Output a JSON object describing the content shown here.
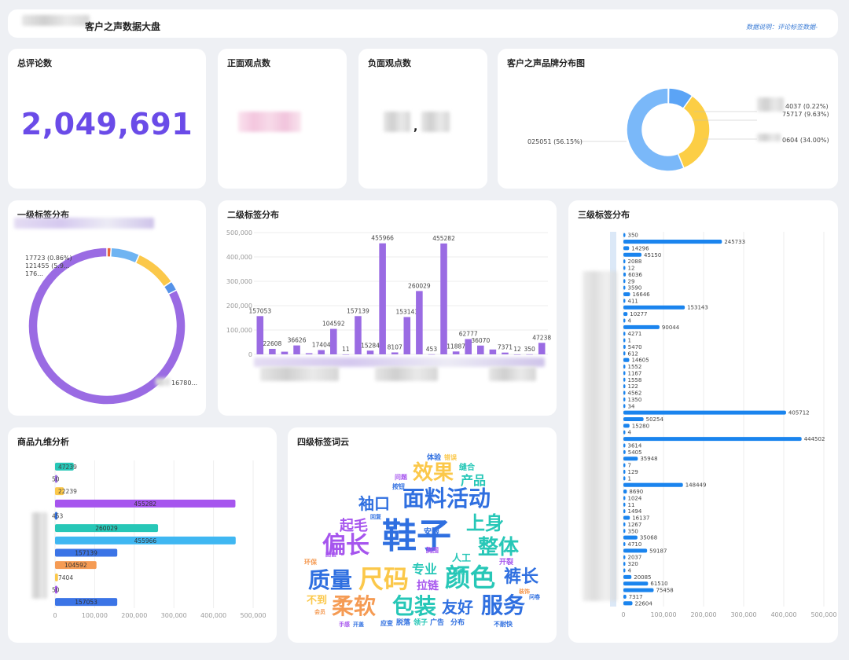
{
  "header": {
    "title": "客户之声数据大盘",
    "note": "数据说明：评论标签数据-"
  },
  "kpis": {
    "total_comments_label": "总评论数",
    "total_comments_value": "2,049,691",
    "positive_label": "正面观点数",
    "negative_label": "负面观点数",
    "negative_separator": ","
  },
  "brand": {
    "title": "客户之声品牌分布图",
    "labels": [
      "4037 (0.22%)",
      "75717 (9.63%)",
      "0604 (34.00%)",
      "025051 (56.15%)"
    ]
  },
  "level1": {
    "title": "一级标签分布",
    "labels": [
      "17723 (0.86%)",
      "121455 (5.9...",
      "176...",
      "16780..."
    ]
  },
  "level2_title": "二级标签分布",
  "level3_title": "三级标签分布",
  "nine_title": "商品九维分析",
  "cloud_title": "四级标签词云",
  "chart_data": [
    {
      "type": "pie",
      "title": "客户之声品牌分布图",
      "shape": "donut",
      "slices": [
        {
          "label": "4037 (0.22%)",
          "percent": 0.22,
          "color": "#4e8ef7"
        },
        {
          "label": "75717 (9.63%)",
          "percent": 9.63,
          "color": "#5ba4f6"
        },
        {
          "label": "0604 (34.00%)",
          "percent": 34.0,
          "color": "#fcce45"
        },
        {
          "label": "025051 (56.15%)",
          "percent": 56.15,
          "color": "#7ab8f9"
        }
      ]
    },
    {
      "type": "pie",
      "title": "一级标签分布",
      "shape": "donut",
      "slices": [
        {
          "label": "17723 (0.86%)",
          "percent": 0.86,
          "color": "#e8643c"
        },
        {
          "label": "121455 (5.9...",
          "percent": 5.93,
          "color": "#6fb4f2"
        },
        {
          "label": "176...",
          "percent": 8.6,
          "color": "#fbc84a"
        },
        {
          "label": "",
          "percent": 2.0,
          "color": "#5592e8"
        },
        {
          "label": "16780...",
          "percent": 82.61,
          "color": "#9a6be3"
        }
      ]
    },
    {
      "type": "bar",
      "title": "二级标签分布",
      "values": [
        157053,
        22608,
        11000,
        36626,
        4500,
        17404,
        104592,
        11,
        157139,
        15284,
        455966,
        8107,
        153143,
        260029,
        453,
        455282,
        11887,
        62777,
        36070,
        20000,
        7371,
        12,
        350,
        47238
      ],
      "labels": [
        "157053",
        "22608",
        "",
        "36626",
        "",
        "17404",
        "104592",
        "11",
        "157139",
        "15284",
        "455966",
        "8107",
        "153143",
        "260029",
        "453",
        "455282",
        "11887",
        "62777",
        "36070",
        "",
        "7371",
        "12",
        "350",
        "47238"
      ],
      "ylim": [
        0,
        500000
      ],
      "yticks": [
        "0",
        "100,000",
        "200,000",
        "300,000",
        "400,000",
        "500,000"
      ],
      "color": "#9a6be3"
    },
    {
      "type": "bar",
      "orientation": "horizontal",
      "title": "三级标签分布",
      "values": [
        350,
        245733,
        14296,
        45150,
        2088,
        12,
        6036,
        29,
        3590,
        16646,
        411,
        153143,
        10277,
        4,
        90044,
        4271,
        1,
        5470,
        612,
        14605,
        1552,
        1167,
        1558,
        122,
        4562,
        1350,
        34,
        405712,
        50254,
        15280,
        4,
        444502,
        3614,
        5405,
        35948,
        7,
        129,
        1,
        148449,
        8690,
        1024,
        11,
        1494,
        16137,
        1267,
        350,
        35068,
        4710,
        59187,
        2037,
        320,
        4,
        20085,
        61510,
        75458,
        7317,
        22604
      ],
      "xlim": [
        0,
        500000
      ],
      "xticks": [
        "0",
        "100,000",
        "200,000",
        "300,000",
        "400,000",
        "500,000"
      ],
      "color": "#1a84ee"
    },
    {
      "type": "bar",
      "orientation": "horizontal",
      "title": "商品九维分析",
      "values": [
        47239,
        50,
        22239,
        455282,
        453,
        260029,
        455966,
        157139,
        104592,
        7404,
        50,
        157053
      ],
      "labels": [
        "47239",
        "50",
        "22239",
        "455282",
        "453",
        "260029",
        "455966",
        "157139",
        "104592",
        "7404",
        "50",
        "157053"
      ],
      "label_positions": [
        "inside",
        "outside",
        "inside",
        "inside",
        "outside",
        "inside",
        "inside",
        "inside",
        "inside",
        "inside",
        "outside",
        "inside"
      ],
      "colors": [
        "#27c7b7",
        "#9a6be3",
        "#fbc84a",
        "#a655ee",
        "#2f6fe0",
        "#27c7b7",
        "#3fb7f2",
        "#3b74e6",
        "#f59b54",
        "#fbc84a",
        "#a655ee",
        "#3b74e6"
      ],
      "xlim": [
        0,
        500000
      ],
      "xticks": [
        "0",
        "100,000",
        "200,000",
        "300,000",
        "400,000",
        "500,000"
      ]
    }
  ],
  "word_cloud": [
    {
      "text": "鞋子",
      "size": 44,
      "color": "#2f6fe0",
      "x": 530,
      "y": 697
    },
    {
      "text": "偏长",
      "size": 30,
      "color": "#a655ee",
      "x": 440,
      "y": 704
    },
    {
      "text": "颜色",
      "size": 32,
      "color": "#27c7b7",
      "x": 598,
      "y": 746
    },
    {
      "text": "尺码",
      "size": 32,
      "color": "#fbc84a",
      "x": 488,
      "y": 748
    },
    {
      "text": "质量",
      "size": 28,
      "color": "#2f6fe0",
      "x": 420,
      "y": 748
    },
    {
      "text": "面料活动",
      "size": 28,
      "color": "#2f6fe0",
      "x": 568,
      "y": 644
    },
    {
      "text": "效果",
      "size": 26,
      "color": "#fbc84a",
      "x": 551,
      "y": 610
    },
    {
      "text": "整体",
      "size": 26,
      "color": "#27c7b7",
      "x": 634,
      "y": 705
    },
    {
      "text": "上身",
      "size": 24,
      "color": "#27c7b7",
      "x": 617,
      "y": 674
    },
    {
      "text": "包装",
      "size": 28,
      "color": "#27c7b7",
      "x": 527,
      "y": 781
    },
    {
      "text": "柔软",
      "size": 28,
      "color": "#f59b54",
      "x": 450,
      "y": 781
    },
    {
      "text": "服务",
      "size": 28,
      "color": "#2f6fe0",
      "x": 640,
      "y": 780
    },
    {
      "text": "裤长",
      "size": 22,
      "color": "#2f6fe0",
      "x": 663,
      "y": 741
    },
    {
      "text": "友好",
      "size": 20,
      "color": "#2f6fe0",
      "x": 582,
      "y": 780
    },
    {
      "text": "袖口",
      "size": 20,
      "color": "#2f6fe0",
      "x": 476,
      "y": 648
    },
    {
      "text": "起毛",
      "size": 18,
      "color": "#a655ee",
      "x": 450,
      "y": 675
    },
    {
      "text": "产品",
      "size": 16,
      "color": "#27c7b7",
      "x": 602,
      "y": 617
    },
    {
      "text": "专业",
      "size": 16,
      "color": "#27c7b7",
      "x": 540,
      "y": 730
    },
    {
      "text": "拉链",
      "size": 14,
      "color": "#a655ee",
      "x": 544,
      "y": 750
    },
    {
      "text": "不到",
      "size": 13,
      "color": "#fbc84a",
      "x": 403,
      "y": 768
    },
    {
      "text": "人工",
      "size": 12,
      "color": "#27c7b7",
      "x": 587,
      "y": 714
    },
    {
      "text": "安限",
      "size": 10,
      "color": "#2f6fe0",
      "x": 549,
      "y": 680
    },
    {
      "text": "缝合",
      "size": 10,
      "color": "#27c7b7",
      "x": 594,
      "y": 598
    },
    {
      "text": "体验",
      "size": 9,
      "color": "#2f6fe0",
      "x": 552,
      "y": 585
    },
    {
      "text": "错误",
      "size": 8,
      "color": "#fbc84a",
      "x": 573,
      "y": 585
    },
    {
      "text": "问题",
      "size": 8,
      "color": "#a655ee",
      "x": 510,
      "y": 610
    },
    {
      "text": "按钮",
      "size": 8,
      "color": "#2f6fe0",
      "x": 507,
      "y": 622
    },
    {
      "text": "开裂",
      "size": 9,
      "color": "#a655ee",
      "x": 644,
      "y": 718
    },
    {
      "text": "环保",
      "size": 8,
      "color": "#f59b54",
      "x": 395,
      "y": 718
    },
    {
      "text": "胸围",
      "size": 8,
      "color": "#a655ee",
      "x": 550,
      "y": 703
    },
    {
      "text": "压痕",
      "size": 8,
      "color": "#27c7b7",
      "x": 584,
      "y": 730
    },
    {
      "text": "领子",
      "size": 9,
      "color": "#27c7b7",
      "x": 535,
      "y": 795
    },
    {
      "text": "广告",
      "size": 9,
      "color": "#2f6fe0",
      "x": 556,
      "y": 795
    },
    {
      "text": "分布",
      "size": 9,
      "color": "#2f6fe0",
      "x": 582,
      "y": 795
    },
    {
      "text": "脱落",
      "size": 9,
      "color": "#2f6fe0",
      "x": 513,
      "y": 795
    },
    {
      "text": "应变",
      "size": 8,
      "color": "#2f6fe0",
      "x": 492,
      "y": 796
    },
    {
      "text": "不耐快",
      "size": 8,
      "color": "#2f6fe0",
      "x": 640,
      "y": 797
    },
    {
      "text": "会员",
      "size": 7,
      "color": "#f59b54",
      "x": 407,
      "y": 781
    },
    {
      "text": "手感",
      "size": 7,
      "color": "#a655ee",
      "x": 438,
      "y": 797
    },
    {
      "text": "开盖",
      "size": 7,
      "color": "#2f6fe0",
      "x": 456,
      "y": 797
    },
    {
      "text": "回复",
      "size": 7,
      "color": "#2f6fe0",
      "x": 478,
      "y": 660
    },
    {
      "text": "回信",
      "size": 7,
      "color": "#a655ee",
      "x": 421,
      "y": 708
    },
    {
      "text": "装饰",
      "size": 7,
      "color": "#f59b54",
      "x": 667,
      "y": 755
    },
    {
      "text": "问卷",
      "size": 7,
      "color": "#2f6fe0",
      "x": 680,
      "y": 762
    }
  ]
}
